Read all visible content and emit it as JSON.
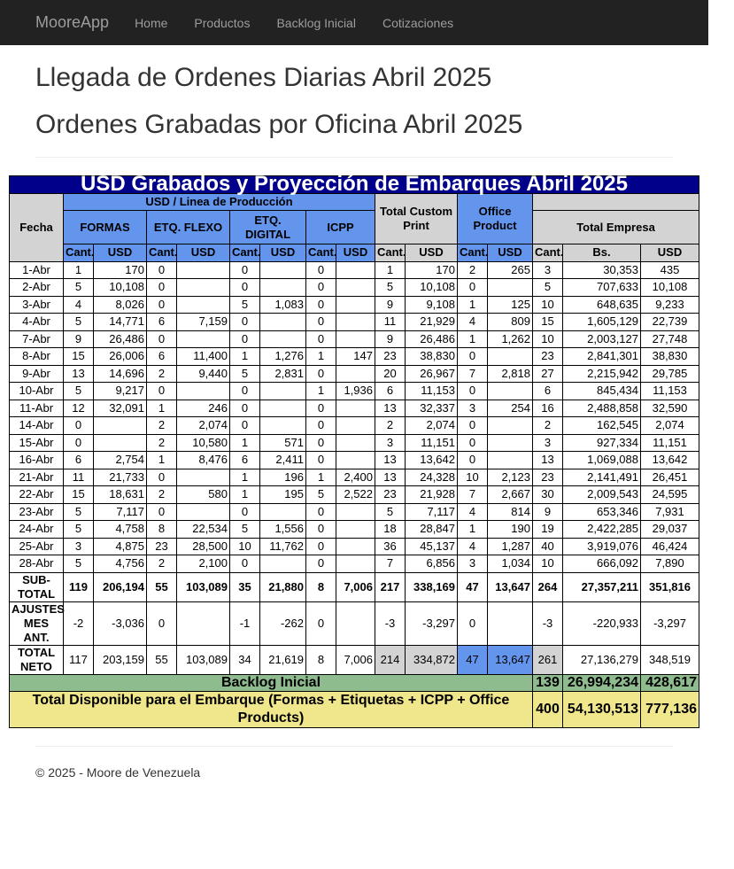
{
  "nav": {
    "brand": "MooreApp",
    "links": [
      "Home",
      "Productos",
      "Backlog Inicial",
      "Cotizaciones"
    ]
  },
  "headings": {
    "h1": "Llegada de Ordenes Diarias Abril 2025",
    "h2": "Ordenes Grabadas por Oficina Abril 2025"
  },
  "table": {
    "title": "USD Grabados y Proyección de Embarques Abril 2025",
    "line_header": "USD / Linea de Producción",
    "fecha_header": "Fecha",
    "groups": [
      "FORMAS",
      "ETQ. FLEXO",
      "ETQ. DIGITAL",
      "ICPP",
      "Total Custom Print",
      "Office Product",
      "Total Empresa"
    ],
    "subheaders": [
      "Cant.",
      "USD",
      "Cant.",
      "USD",
      "Cant.",
      "USD",
      "Cant.",
      "USD",
      "Cant.",
      "USD",
      "Cant.",
      "USD",
      "Cant.",
      "Bs.",
      "USD"
    ],
    "rows": [
      [
        "1-Abr",
        "1",
        "170",
        "0",
        "",
        "0",
        "",
        "0",
        "",
        "1",
        "170",
        "2",
        "265",
        "3",
        "30,353",
        "435"
      ],
      [
        "2-Abr",
        "5",
        "10,108",
        "0",
        "",
        "0",
        "",
        "0",
        "",
        "5",
        "10,108",
        "0",
        "",
        "5",
        "707,633",
        "10,108"
      ],
      [
        "3-Abr",
        "4",
        "8,026",
        "0",
        "",
        "5",
        "1,083",
        "0",
        "",
        "9",
        "9,108",
        "1",
        "125",
        "10",
        "648,635",
        "9,233"
      ],
      [
        "4-Abr",
        "5",
        "14,771",
        "6",
        "7,159",
        "0",
        "",
        "0",
        "",
        "11",
        "21,929",
        "4",
        "809",
        "15",
        "1,605,129",
        "22,739"
      ],
      [
        "7-Abr",
        "9",
        "26,486",
        "0",
        "",
        "0",
        "",
        "0",
        "",
        "9",
        "26,486",
        "1",
        "1,262",
        "10",
        "2,003,127",
        "27,748"
      ],
      [
        "8-Abr",
        "15",
        "26,006",
        "6",
        "11,400",
        "1",
        "1,276",
        "1",
        "147",
        "23",
        "38,830",
        "0",
        "",
        "23",
        "2,841,301",
        "38,830"
      ],
      [
        "9-Abr",
        "13",
        "14,696",
        "2",
        "9,440",
        "5",
        "2,831",
        "0",
        "",
        "20",
        "26,967",
        "7",
        "2,818",
        "27",
        "2,215,942",
        "29,785"
      ],
      [
        "10-Abr",
        "5",
        "9,217",
        "0",
        "",
        "0",
        "",
        "1",
        "1,936",
        "6",
        "11,153",
        "0",
        "",
        "6",
        "845,434",
        "11,153"
      ],
      [
        "11-Abr",
        "12",
        "32,091",
        "1",
        "246",
        "0",
        "",
        "0",
        "",
        "13",
        "32,337",
        "3",
        "254",
        "16",
        "2,488,858",
        "32,590"
      ],
      [
        "14-Abr",
        "0",
        "",
        "2",
        "2,074",
        "0",
        "",
        "0",
        "",
        "2",
        "2,074",
        "0",
        "",
        "2",
        "162,545",
        "2,074"
      ],
      [
        "15-Abr",
        "0",
        "",
        "2",
        "10,580",
        "1",
        "571",
        "0",
        "",
        "3",
        "11,151",
        "0",
        "",
        "3",
        "927,334",
        "11,151"
      ],
      [
        "16-Abr",
        "6",
        "2,754",
        "1",
        "8,476",
        "6",
        "2,411",
        "0",
        "",
        "13",
        "13,642",
        "0",
        "",
        "13",
        "1,069,088",
        "13,642"
      ],
      [
        "21-Abr",
        "11",
        "21,733",
        "0",
        "",
        "1",
        "196",
        "1",
        "2,400",
        "13",
        "24,328",
        "10",
        "2,123",
        "23",
        "2,141,491",
        "26,451"
      ],
      [
        "22-Abr",
        "15",
        "18,631",
        "2",
        "580",
        "1",
        "195",
        "5",
        "2,522",
        "23",
        "21,928",
        "7",
        "2,667",
        "30",
        "2,009,543",
        "24,595"
      ],
      [
        "23-Abr",
        "5",
        "7,117",
        "0",
        "",
        "0",
        "",
        "0",
        "",
        "5",
        "7,117",
        "4",
        "814",
        "9",
        "653,346",
        "7,931"
      ],
      [
        "24-Abr",
        "5",
        "4,758",
        "8",
        "22,534",
        "5",
        "1,556",
        "0",
        "",
        "18",
        "28,847",
        "1",
        "190",
        "19",
        "2,422,285",
        "29,037"
      ],
      [
        "25-Abr",
        "3",
        "4,875",
        "23",
        "28,500",
        "10",
        "11,762",
        "0",
        "",
        "36",
        "45,137",
        "4",
        "1,287",
        "40",
        "3,919,076",
        "46,424"
      ],
      [
        "28-Abr",
        "5",
        "4,756",
        "2",
        "2,100",
        "0",
        "",
        "0",
        "",
        "7",
        "6,856",
        "3",
        "1,034",
        "10",
        "666,092",
        "7,890"
      ]
    ],
    "subtotal": [
      "SUB-TOTAL",
      "119",
      "206,194",
      "55",
      "103,089",
      "35",
      "21,880",
      "8",
      "7,006",
      "217",
      "338,169",
      "47",
      "13,647",
      "264",
      "27,357,211",
      "351,816"
    ],
    "ajustes": [
      "AJUSTES MES ANT.",
      "-2",
      "-3,036",
      "0",
      "",
      "-1",
      "-262",
      "0",
      "",
      "-3",
      "-3,297",
      "0",
      "",
      "-3",
      "-220,933",
      "-3,297"
    ],
    "total_neto": [
      "TOTAL NETO",
      "117",
      "203,159",
      "55",
      "103,089",
      "34",
      "21,619",
      "8",
      "7,006",
      "214",
      "334,872",
      "47",
      "13,647",
      "261",
      "27,136,279",
      "348,519"
    ],
    "backlog": {
      "label": "Backlog Inicial",
      "cant": "139",
      "bs": "26,994,234",
      "usd": "428,617"
    },
    "disponible": {
      "label": "Total Disponible para el Embarque (Formas + Etiquetas + ICPP + Office Products)",
      "cant": "400",
      "bs": "54,130,513",
      "usd": "777,136"
    }
  },
  "footer": "© 2025 - Moore de Venezuela"
}
